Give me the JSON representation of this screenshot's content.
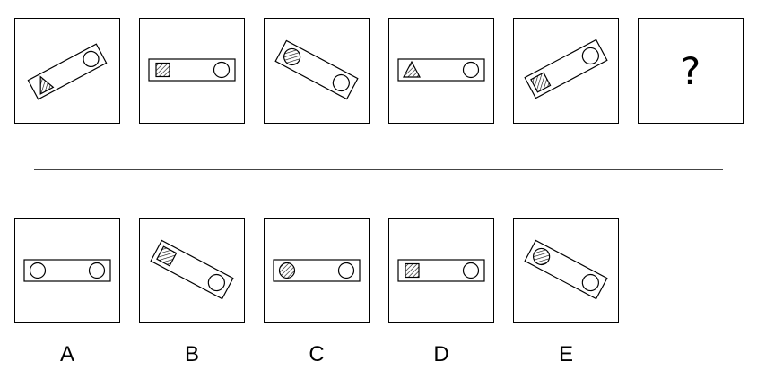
{
  "question_mark": "?",
  "options": [
    {
      "label": "A"
    },
    {
      "label": "B"
    },
    {
      "label": "C"
    },
    {
      "label": "D"
    },
    {
      "label": "E"
    }
  ]
}
